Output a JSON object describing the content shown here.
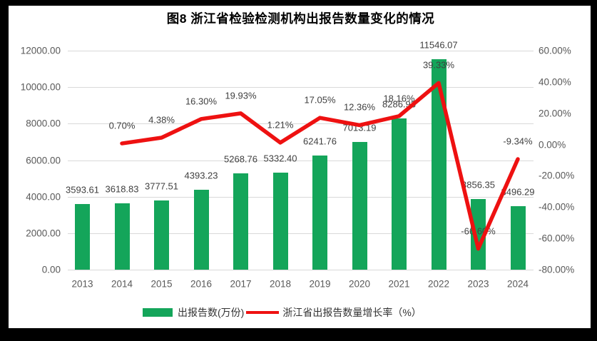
{
  "title": "图8 浙江省检验检测机构出报告数量变化的情况",
  "legend": [
    {
      "label": "出报告数(万份)",
      "color": "#14a55a",
      "swatch": "bar-swatch"
    },
    {
      "label": "浙江省出报告数量增长率（%）",
      "color": "#ee1111",
      "swatch": "line-swatch"
    }
  ],
  "colors": {
    "bar": "#14a55a",
    "line": "#ee1111",
    "grid": "#d9d9d9",
    "axis_text": "#595959",
    "data_label_text": "#404040",
    "frame": "#000000",
    "background": "#ffffff"
  },
  "chart_data": {
    "type": "bar+line combo",
    "title": "图8 浙江省检验检测机构出报告数量变化的情况",
    "categories": [
      "2013",
      "2014",
      "2015",
      "2016",
      "2017",
      "2018",
      "2019",
      "2020",
      "2021",
      "2022",
      "2023",
      "2024"
    ],
    "series": [
      {
        "name": "出报告数(万份)",
        "type": "bar",
        "axis": "left",
        "color": "#14a55a",
        "values": [
          3593.61,
          3618.83,
          3777.51,
          4393.23,
          5268.76,
          5332.4,
          6241.76,
          7013.19,
          8286.93,
          11546.07,
          3856.35,
          3496.29
        ],
        "labels": [
          "3593.61",
          "3618.83",
          "3777.51",
          "4393.23",
          "5268.76",
          "5332.40",
          "6241.76",
          "7013.19",
          "8286.93",
          "11546.07",
          "3856.35",
          "3496.29"
        ]
      },
      {
        "name": "浙江省出报告数量增长率（%）",
        "type": "line",
        "axis": "right",
        "color": "#ee1111",
        "values": [
          null,
          0.7,
          4.38,
          16.3,
          19.93,
          1.21,
          17.05,
          12.36,
          18.16,
          39.33,
          -66.6,
          -9.34
        ],
        "labels": [
          null,
          "0.70%",
          "4.38%",
          "16.30%",
          "19.93%",
          "1.21%",
          "17.05%",
          "12.36%",
          "18.16%",
          "39.33%",
          "-66.60%",
          "-9.34%"
        ]
      }
    ],
    "left_axis": {
      "min": 0,
      "max": 12000,
      "step": 2000,
      "ticks": [
        "12000.00",
        "10000.00",
        "8000.00",
        "6000.00",
        "4000.00",
        "2000.00",
        "0.00"
      ]
    },
    "right_axis": {
      "min": -80,
      "max": 60,
      "step": 20,
      "ticks": [
        "60.00%",
        "40.00%",
        "20.00%",
        "0.00%",
        "-20.00%",
        "-40.00%",
        "-60.00%",
        "-80.00%"
      ]
    },
    "grid": "horizontal gridlines aligned to left axis",
    "legend_position": "bottom"
  }
}
